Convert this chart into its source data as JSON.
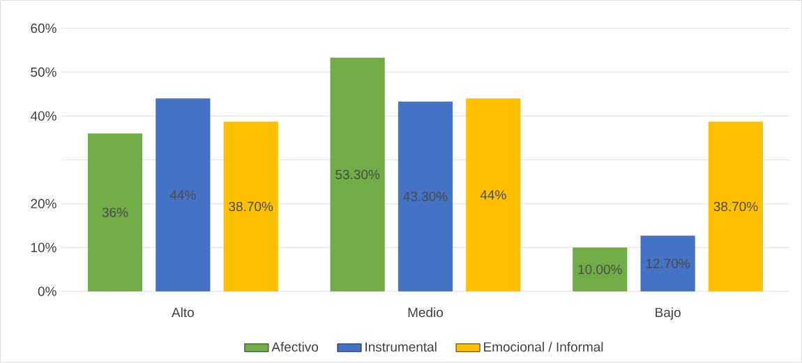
{
  "chart_data": {
    "type": "bar",
    "categories": [
      "Alto",
      "Medio",
      "Bajo"
    ],
    "series": [
      {
        "name": "Afectivo",
        "color": "#70ad47",
        "values": [
          36,
          53.3,
          10
        ],
        "value_labels": [
          "36%",
          "53.30%",
          "10.00%"
        ]
      },
      {
        "name": "Instrumental",
        "color": "#4472c4",
        "values": [
          44,
          43.3,
          12.7
        ],
        "value_labels": [
          "44%",
          "43.30%",
          "12.70%"
        ]
      },
      {
        "name": "Emocional / Informal",
        "color": "#ffc000",
        "values": [
          38.7,
          44,
          38.7
        ],
        "value_labels": [
          "38.70%",
          "44%",
          "38.70%"
        ]
      }
    ],
    "ylim": [
      0,
      60
    ],
    "yticks": [
      {
        "value": 0,
        "label": "0%"
      },
      {
        "value": 10,
        "label": "10%"
      },
      {
        "value": 20,
        "label": "20%"
      },
      {
        "value": 30,
        "label": null
      },
      {
        "value": 40,
        "label": "40%"
      },
      {
        "value": 50,
        "label": "50%"
      },
      {
        "value": 60,
        "label": "60%"
      }
    ],
    "grid": "y",
    "legend": "bottom"
  }
}
